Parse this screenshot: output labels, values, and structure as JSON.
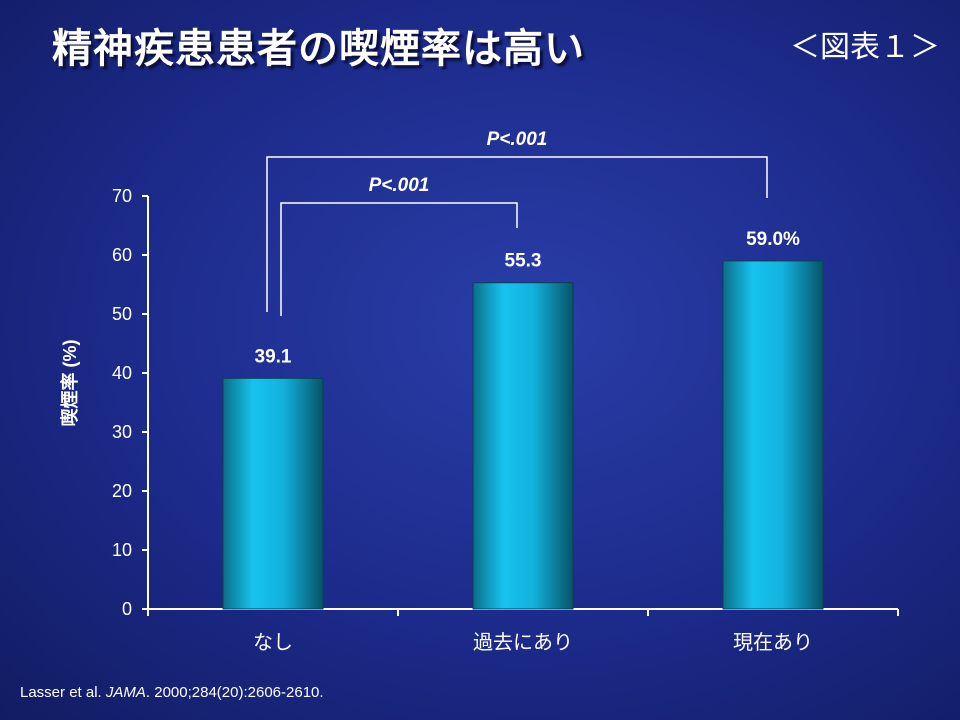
{
  "slide": {
    "title": "精神疾患患者の喫煙率は高い",
    "figure_label": "＜図表１＞"
  },
  "source": {
    "authors": "Lasser et al.",
    "journal": "JAMA",
    "citation": ". 2000;284(20):2606-2610."
  },
  "chart_data": {
    "type": "bar",
    "categories": [
      "なし",
      "過去にあり",
      "現在あり"
    ],
    "values": [
      39.1,
      55.3,
      59.0
    ],
    "value_labels": [
      "39.1",
      "55.3",
      "59.0%"
    ],
    "ylabel": "喫煙率 (%)",
    "xlabel": "",
    "ylim": [
      0,
      70
    ],
    "yticks": [
      0,
      10,
      20,
      30,
      40,
      50,
      60,
      70
    ],
    "grid": false,
    "bar_color": "#16c3ee",
    "annotations": [
      {
        "from": 0,
        "to": 1,
        "label": "P<.001"
      },
      {
        "from": 0,
        "to": 2,
        "label": "P<.001"
      }
    ]
  }
}
